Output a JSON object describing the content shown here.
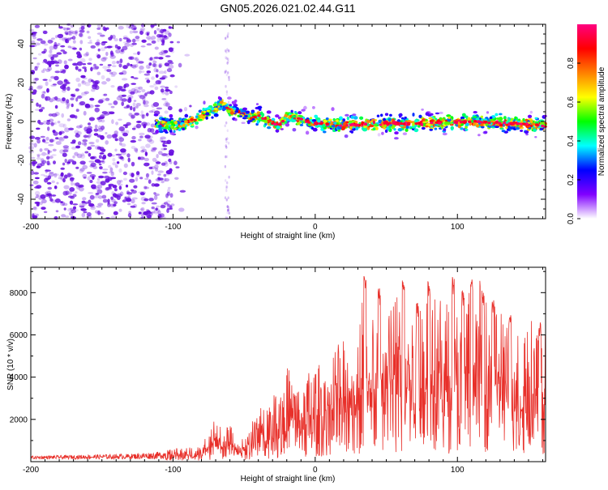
{
  "figure_title": "GN05.2026.021.02.44.G11",
  "colors": {
    "line": "#e8302a",
    "scatter_dark": "#6a12e0",
    "frame": "#000000"
  },
  "colorbar": {
    "label": "Normalized spectral amplitude",
    "ticks": [
      "0.0",
      "0.2",
      "0.4",
      "0.6",
      "0.8"
    ],
    "tick_values": [
      0.0,
      0.2,
      0.4,
      0.6,
      0.8
    ],
    "range": [
      0,
      1
    ],
    "colormap": [
      "#ffffff",
      "#8000ff",
      "#0000ff",
      "#00ffff",
      "#00ff00",
      "#ffff00",
      "#ff8000",
      "#ff0000",
      "#ff0080"
    ]
  },
  "chart_data": [
    {
      "type": "heatmap",
      "title": "GN05.2026.021.02.44.G11",
      "xlabel": "Height of straight line (km)",
      "ylabel": "Frequency (Hz)",
      "xlim": [
        -200,
        162
      ],
      "ylim": [
        -50,
        50
      ],
      "xticks": [
        -200,
        -100,
        0,
        100
      ],
      "xtick_labels": [
        "-200",
        "-100",
        "0",
        "100"
      ],
      "yticks": [
        -40,
        -20,
        0,
        20,
        40
      ],
      "ytick_labels": [
        "-40",
        "-20",
        "0",
        "20",
        "40"
      ],
      "noise_region_x": [
        -200,
        -100
      ],
      "center_track": {
        "x": [
          -110,
          -100,
          -90,
          -80,
          -72,
          -65,
          -60,
          -55,
          -50,
          -45,
          -40,
          -35,
          -30,
          -25,
          -20,
          -15,
          -10,
          -5,
          0,
          20,
          50,
          80,
          110,
          140,
          162
        ],
        "y": [
          -1,
          -2,
          -1,
          3,
          6,
          9,
          5,
          6,
          4,
          2,
          3,
          1,
          -1,
          -2,
          3,
          2,
          1,
          0,
          -1,
          -2,
          -1,
          -1,
          0,
          -1,
          -2
        ]
      }
    },
    {
      "type": "line",
      "xlabel": "Height of straight line (km)",
      "ylabel": "SNR (10 * v/v)",
      "xlim": [
        -200,
        162
      ],
      "ylim": [
        0,
        9200
      ],
      "xticks": [
        -200,
        -100,
        0,
        100
      ],
      "xtick_labels": [
        "-200",
        "-100",
        "0",
        "100"
      ],
      "yticks": [
        2000,
        4000,
        6000,
        8000
      ],
      "ytick_labels": [
        "2000",
        "4000",
        "6000",
        "8000"
      ],
      "envelope": {
        "x": [
          -200,
          -130,
          -110,
          -100,
          -80,
          -70,
          -65,
          -60,
          -55,
          -50,
          -40,
          -30,
          -20,
          -10,
          0,
          10,
          20,
          30,
          35,
          40,
          60,
          80,
          100,
          110,
          120,
          140,
          150,
          162
        ],
        "y": [
          300,
          400,
          500,
          600,
          800,
          2200,
          1400,
          1800,
          900,
          1300,
          2500,
          3000,
          4500,
          4000,
          4500,
          5000,
          6000,
          6500,
          8800,
          7500,
          8500,
          8000,
          7500,
          8500,
          9000,
          6000,
          7000,
          6500
        ]
      },
      "peak_points": {
        "x": [
          35,
          45,
          62,
          72,
          80,
          97,
          104,
          110,
          118,
          125,
          137,
          158
        ],
        "y": [
          8900,
          8200,
          8800,
          7600,
          8700,
          8800,
          8200,
          9000,
          8100,
          7700,
          7000,
          6600
        ]
      }
    }
  ]
}
